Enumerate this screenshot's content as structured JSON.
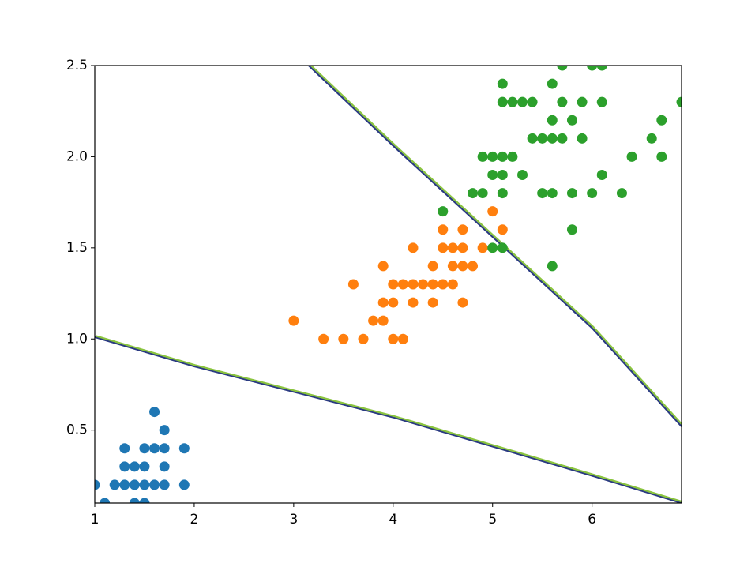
{
  "chart_data": {
    "type": "scatter",
    "xlim": [
      1,
      6.9
    ],
    "ylim": [
      0.1,
      2.5
    ],
    "xticks": [
      1,
      2,
      3,
      4,
      5,
      6
    ],
    "yticks": [
      0.5,
      {
        "value": 1.0,
        "label": "1.0"
      },
      1.5,
      {
        "value": 2.0,
        "label": "2.0"
      },
      2.5
    ],
    "grid": false,
    "series": [
      {
        "color": "#1f77b4",
        "x": [
          1.0,
          1.1,
          1.2,
          1.3,
          1.3,
          1.3,
          1.4,
          1.4,
          1.4,
          1.5,
          1.5,
          1.5,
          1.5,
          1.6,
          1.6,
          1.6,
          1.7,
          1.7,
          1.7,
          1.7,
          1.9,
          1.9
        ],
        "y": [
          0.2,
          0.1,
          0.2,
          0.2,
          0.3,
          0.4,
          0.2,
          0.3,
          0.1,
          0.2,
          0.4,
          0.1,
          0.3,
          0.2,
          0.4,
          0.6,
          0.2,
          0.3,
          0.4,
          0.5,
          0.2,
          0.4
        ]
      },
      {
        "color": "#ff7f0e",
        "x": [
          3.0,
          3.3,
          3.5,
          3.6,
          3.7,
          3.8,
          3.9,
          3.9,
          3.9,
          4.0,
          4.0,
          4.0,
          4.1,
          4.1,
          4.2,
          4.2,
          4.2,
          4.3,
          4.4,
          4.4,
          4.4,
          4.5,
          4.5,
          4.5,
          4.6,
          4.6,
          4.6,
          4.7,
          4.7,
          4.7,
          4.7,
          4.8,
          4.9,
          5.0,
          5.1
        ],
        "y": [
          1.1,
          1.0,
          1.0,
          1.3,
          1.0,
          1.1,
          1.1,
          1.2,
          1.4,
          1.0,
          1.2,
          1.3,
          1.0,
          1.3,
          1.2,
          1.3,
          1.5,
          1.3,
          1.2,
          1.3,
          1.4,
          1.3,
          1.5,
          1.6,
          1.3,
          1.4,
          1.5,
          1.2,
          1.4,
          1.5,
          1.6,
          1.4,
          1.5,
          1.7,
          1.6
        ]
      },
      {
        "color": "#2ca02c",
        "x": [
          4.5,
          4.8,
          4.9,
          4.9,
          5.0,
          5.0,
          5.0,
          5.1,
          5.1,
          5.1,
          5.1,
          5.1,
          5.1,
          5.2,
          5.2,
          5.3,
          5.3,
          5.4,
          5.4,
          5.5,
          5.5,
          5.6,
          5.6,
          5.6,
          5.6,
          5.6,
          5.7,
          5.7,
          5.7,
          5.8,
          5.8,
          5.8,
          5.9,
          5.9,
          6.0,
          6.0,
          6.1,
          6.1,
          6.1,
          6.3,
          6.4,
          6.6,
          6.7,
          6.7,
          6.9
        ],
        "y": [
          1.7,
          1.8,
          1.8,
          2.0,
          1.5,
          1.9,
          2.0,
          1.5,
          1.8,
          1.9,
          2.0,
          2.3,
          2.4,
          2.0,
          2.3,
          1.9,
          2.3,
          2.1,
          2.3,
          1.8,
          2.1,
          1.4,
          1.8,
          2.1,
          2.2,
          2.4,
          2.1,
          2.3,
          2.5,
          1.6,
          1.8,
          2.2,
          2.1,
          2.3,
          1.8,
          2.5,
          1.9,
          2.3,
          2.5,
          1.8,
          2.0,
          2.1,
          2.0,
          2.2,
          2.3
        ]
      }
    ],
    "boundary_colors": [
      "#2a3a82",
      "#8ac43f"
    ],
    "boundaries": [
      {
        "x": [
          1.0,
          2.0,
          3.0,
          4.0,
          5.0,
          6.0,
          6.9
        ],
        "y": [
          1.01,
          0.85,
          0.71,
          0.57,
          0.41,
          0.25,
          0.1
        ]
      },
      {
        "x": [
          3.15,
          4.0,
          5.0,
          6.0,
          6.9
        ],
        "y": [
          2.5,
          2.06,
          1.56,
          1.06,
          0.52
        ]
      }
    ]
  }
}
